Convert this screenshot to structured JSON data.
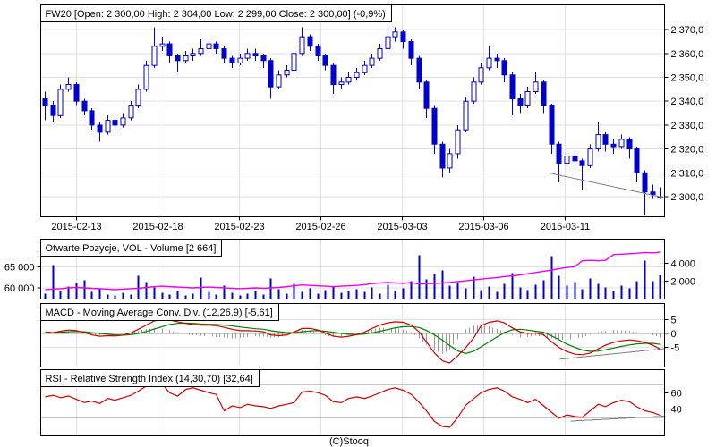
{
  "footer": {
    "copyright": "(C)Stooq"
  },
  "colors": {
    "candle": "#0000cc",
    "volume_bar": "#0000cc",
    "open_interest_line": "#ee00ee",
    "macd_line": "#cc0000",
    "signal_line": "#008000",
    "histogram": "#999999",
    "rsi_line": "#cc0000",
    "trendline": "#808080",
    "grid": "#e0e0e0",
    "level_line": "#888888",
    "frame": "#000000"
  },
  "chart_data": [
    {
      "type": "candlestick",
      "panel": "price",
      "title": "FW20 [Open: 2 300,00 High: 2 304,00 Low: 2 299,00 Close: 2 300,00] (-0,9%)",
      "instrument": "FW20",
      "last_quote": {
        "open": "2 300,00",
        "high": "2 304,00",
        "low": "2 299,00",
        "close": "2 300,00",
        "change": "-0,9%"
      },
      "y_ticks": [
        {
          "v": 2370,
          "label": "2 370,0"
        },
        {
          "v": 2360,
          "label": "2 360,0"
        },
        {
          "v": 2350,
          "label": "2 350,0"
        },
        {
          "v": 2340,
          "label": "2 340,0"
        },
        {
          "v": 2330,
          "label": "2 330,0"
        },
        {
          "v": 2320,
          "label": "2 320,0"
        },
        {
          "v": 2310,
          "label": "2 310,0"
        },
        {
          "v": 2300,
          "label": "2 300,0"
        }
      ],
      "ylim": [
        2288,
        2374
      ],
      "x_date_ticks": [
        {
          "label": "2015-02-13",
          "i": 4.0
        },
        {
          "label": "2015-02-18",
          "i": 14.5
        },
        {
          "label": "2015-02-23",
          "i": 24.9
        },
        {
          "label": "2015-02-26",
          "i": 35.4
        },
        {
          "label": "2015-03-03",
          "i": 45.9
        },
        {
          "label": "2015-03-06",
          "i": 56.3
        },
        {
          "label": "2015-03-11",
          "i": 66.8
        }
      ],
      "candles_ohlc": [
        [
          2341,
          2344,
          2332,
          2338
        ],
        [
          2338,
          2340,
          2331,
          2334
        ],
        [
          2334,
          2347,
          2333,
          2345
        ],
        [
          2345,
          2350,
          2344,
          2347
        ],
        [
          2347,
          2348,
          2338,
          2340
        ],
        [
          2340,
          2341,
          2334,
          2336
        ],
        [
          2336,
          2337,
          2328,
          2330
        ],
        [
          2330,
          2331,
          2323,
          2327
        ],
        [
          2327,
          2334,
          2326,
          2332
        ],
        [
          2332,
          2334,
          2328,
          2330
        ],
        [
          2330,
          2335,
          2329,
          2333
        ],
        [
          2333,
          2340,
          2332,
          2338
        ],
        [
          2338,
          2347,
          2337,
          2345
        ],
        [
          2345,
          2357,
          2344,
          2355
        ],
        [
          2355,
          2371,
          2354,
          2363
        ],
        [
          2363,
          2367,
          2361,
          2364
        ],
        [
          2364,
          2365,
          2356,
          2359
        ],
        [
          2359,
          2360,
          2352,
          2357
        ],
        [
          2357,
          2361,
          2356,
          2359
        ],
        [
          2359,
          2362,
          2357,
          2360
        ],
        [
          2360,
          2366,
          2359,
          2362
        ],
        [
          2362,
          2366,
          2361,
          2364
        ],
        [
          2364,
          2365,
          2360,
          2362
        ],
        [
          2362,
          2363,
          2356,
          2358
        ],
        [
          2358,
          2359,
          2354,
          2356
        ],
        [
          2356,
          2360,
          2355,
          2358
        ],
        [
          2358,
          2362,
          2357,
          2360
        ],
        [
          2360,
          2362,
          2357,
          2359
        ],
        [
          2359,
          2360,
          2354,
          2357
        ],
        [
          2357,
          2358,
          2341,
          2346
        ],
        [
          2346,
          2353,
          2345,
          2351
        ],
        [
          2351,
          2355,
          2350,
          2353
        ],
        [
          2353,
          2362,
          2352,
          2360
        ],
        [
          2360,
          2371,
          2359,
          2367
        ],
        [
          2367,
          2368,
          2361,
          2363
        ],
        [
          2363,
          2364,
          2357,
          2359
        ],
        [
          2359,
          2360,
          2353,
          2355
        ],
        [
          2355,
          2356,
          2343,
          2347
        ],
        [
          2347,
          2350,
          2345,
          2348
        ],
        [
          2348,
          2352,
          2347,
          2350
        ],
        [
          2350,
          2354,
          2349,
          2352
        ],
        [
          2352,
          2357,
          2351,
          2355
        ],
        [
          2355,
          2360,
          2354,
          2358
        ],
        [
          2358,
          2364,
          2357,
          2362
        ],
        [
          2362,
          2372,
          2361,
          2367
        ],
        [
          2367,
          2371,
          2365,
          2369
        ],
        [
          2369,
          2370,
          2362,
          2365
        ],
        [
          2365,
          2366,
          2355,
          2358
        ],
        [
          2358,
          2359,
          2345,
          2348
        ],
        [
          2348,
          2349,
          2333,
          2337
        ],
        [
          2337,
          2338,
          2318,
          2322
        ],
        [
          2322,
          2323,
          2308,
          2312
        ],
        [
          2312,
          2320,
          2310,
          2318
        ],
        [
          2318,
          2330,
          2316,
          2328
        ],
        [
          2328,
          2342,
          2327,
          2340
        ],
        [
          2340,
          2350,
          2339,
          2348
        ],
        [
          2348,
          2356,
          2347,
          2354
        ],
        [
          2354,
          2363,
          2353,
          2358
        ],
        [
          2358,
          2360,
          2354,
          2357
        ],
        [
          2357,
          2358,
          2348,
          2351
        ],
        [
          2351,
          2352,
          2334,
          2341
        ],
        [
          2341,
          2343,
          2335,
          2338
        ],
        [
          2338,
          2346,
          2337,
          2344
        ],
        [
          2344,
          2352,
          2343,
          2348
        ],
        [
          2348,
          2349,
          2335,
          2338
        ],
        [
          2338,
          2339,
          2318,
          2322
        ],
        [
          2322,
          2323,
          2306,
          2314
        ],
        [
          2314,
          2319,
          2312,
          2317
        ],
        [
          2317,
          2319,
          2312,
          2315
        ],
        [
          2315,
          2316,
          2303,
          2313
        ],
        [
          2313,
          2322,
          2312,
          2320
        ],
        [
          2320,
          2331,
          2319,
          2326
        ],
        [
          2326,
          2327,
          2319,
          2322
        ],
        [
          2322,
          2324,
          2318,
          2321
        ],
        [
          2321,
          2326,
          2320,
          2324
        ],
        [
          2324,
          2325,
          2316,
          2320
        ],
        [
          2320,
          2321,
          2306,
          2310
        ],
        [
          2310,
          2311,
          2291,
          2302
        ],
        [
          2302,
          2305,
          2299,
          2301
        ],
        [
          2300,
          2304,
          2299,
          2300
        ]
      ],
      "trendline": {
        "i1": 64.6,
        "v1": 2310,
        "i2": 79.6,
        "v2": 2299.5
      }
    },
    {
      "type": "bar+line",
      "panel": "volume",
      "title": "Otwarte Pozycje, VOL - Volume [2 664]",
      "last_volume": "2 664",
      "left_axis": {
        "series": "open_interest",
        "ticks": [
          {
            "v": 65000,
            "label": "65 000"
          },
          {
            "v": 60000,
            "label": "60 000"
          }
        ]
      },
      "right_axis": {
        "series": "volume",
        "ticks": [
          {
            "v": 4000,
            "label": "4 000"
          },
          {
            "v": 2000,
            "label": "2 000"
          }
        ]
      },
      "volume_bars": [
        600,
        3800,
        900,
        1400,
        1800,
        2100,
        800,
        1200,
        500,
        400,
        700,
        500,
        2600,
        1900,
        1300,
        700,
        500,
        900,
        400,
        600,
        2400,
        800,
        500,
        1500,
        700,
        400,
        600,
        900,
        500,
        2300,
        1100,
        600,
        1700,
        800,
        1200,
        600,
        1000,
        1400,
        700,
        900,
        1100,
        800,
        1300,
        600,
        1600,
        900,
        1200,
        2000,
        4900,
        2200,
        2800,
        3200,
        1500,
        1800,
        1200,
        2500,
        1000,
        1400,
        800,
        1700,
        2900,
        1300,
        1000,
        1600,
        2100,
        4800,
        2600,
        1500,
        1900,
        1100,
        2300,
        1700,
        1300,
        900,
        1500,
        1200,
        2000,
        4300,
        2000,
        2664
      ],
      "open_interest": [
        59600,
        59700,
        59800,
        60000,
        60100,
        60000,
        59900,
        59800,
        59700,
        59600,
        59700,
        59800,
        59900,
        60100,
        60300,
        60400,
        60300,
        60200,
        60100,
        60000,
        60100,
        60200,
        60100,
        60000,
        59900,
        59800,
        59900,
        60000,
        59900,
        60000,
        60100,
        60300,
        60500,
        60700,
        60600,
        60500,
        60400,
        60300,
        60400,
        60500,
        60600,
        60800,
        61000,
        61200,
        61300,
        61200,
        61100,
        61300,
        60900,
        61000,
        61100,
        61200,
        61300,
        61500,
        61700,
        61900,
        62100,
        62300,
        62500,
        62700,
        62900,
        63100,
        63400,
        63700,
        64000,
        64300,
        64600,
        64900,
        65100,
        66500,
        66600,
        66500,
        66600,
        68000,
        68100,
        68200,
        68300,
        68500,
        68400,
        68600
      ]
    },
    {
      "type": "line+histogram",
      "panel": "macd",
      "title": "MACD - Moving Average Conv. Div. (12,26,9) [-5,61]",
      "params": "12,26,9",
      "last_value": "-5,61",
      "right_axis": {
        "ticks": [
          {
            "v": 5,
            "label": "5"
          },
          {
            "v": 0,
            "label": "0"
          },
          {
            "v": -5,
            "label": "-5"
          }
        ]
      },
      "macd": [
        0.5,
        0.3,
        0.8,
        1.2,
        1.0,
        0.3,
        -0.5,
        -1.0,
        -0.8,
        -0.9,
        -0.6,
        0.2,
        1.5,
        3.0,
        4.5,
        5.0,
        4.8,
        4.2,
        3.6,
        3.2,
        3.0,
        3.0,
        2.8,
        2.2,
        1.5,
        1.0,
        1.0,
        0.9,
        0.6,
        -0.5,
        -0.8,
        -0.5,
        0.5,
        1.8,
        1.8,
        1.2,
        0.2,
        -1.0,
        -1.3,
        -1.0,
        -0.4,
        0.5,
        1.8,
        3.0,
        3.8,
        4.2,
        4.0,
        3.0,
        0.5,
        -3.0,
        -7.0,
        -9.8,
        -10.5,
        -8.0,
        -5.0,
        -1.5,
        2.8,
        4.0,
        4.5,
        3.8,
        2.0,
        0.5,
        0.0,
        0.2,
        -0.5,
        -3.0,
        -5.0,
        -6.5,
        -7.4,
        -7.6,
        -7.0,
        -5.5,
        -4.2,
        -3.2,
        -2.6,
        -2.3,
        -2.6,
        -3.2,
        -4.2,
        -5.6
      ],
      "signal": [
        0.3,
        0.3,
        0.4,
        0.6,
        0.7,
        0.6,
        0.3,
        0.0,
        -0.3,
        -0.5,
        -0.6,
        -0.4,
        0.0,
        0.7,
        1.6,
        2.5,
        3.2,
        3.6,
        3.7,
        3.6,
        3.4,
        3.3,
        3.2,
        3.0,
        2.7,
        2.3,
        2.0,
        1.7,
        1.5,
        1.0,
        0.6,
        0.3,
        0.3,
        0.6,
        0.9,
        1.0,
        0.8,
        0.4,
        0.0,
        -0.3,
        -0.4,
        -0.2,
        0.2,
        0.8,
        1.4,
        2.0,
        2.4,
        2.5,
        2.1,
        1.1,
        -0.5,
        -2.4,
        -4.3,
        -6.2,
        -7.2,
        -6.3,
        -4.8,
        -3.0,
        -1.2,
        0.3,
        1.3,
        1.5,
        1.2,
        0.8,
        0.4,
        -0.9,
        -2.2,
        -3.8,
        -5.0,
        -5.9,
        -6.4,
        -6.3,
        -5.8,
        -5.2,
        -4.6,
        -4.1,
        -3.7,
        -3.5,
        -3.5,
        -3.9
      ],
      "histogram": [
        0.2,
        0.1,
        0.3,
        0.4,
        0.2,
        -0.2,
        -0.5,
        -0.6,
        -0.3,
        -0.2,
        0.0,
        0.4,
        1.0,
        1.6,
        2.0,
        1.8,
        1.2,
        0.4,
        -0.2,
        -0.6,
        -0.8,
        -1.0,
        -1.2,
        -1.5,
        -1.8,
        -1.6,
        -1.2,
        -1.0,
        -1.1,
        -1.6,
        -1.4,
        -0.8,
        0.3,
        1.3,
        1.0,
        0.3,
        -0.6,
        -1.3,
        -1.2,
        -0.6,
        0.0,
        0.6,
        1.4,
        2.0,
        2.2,
        2.0,
        1.4,
        0.4,
        -1.8,
        -4.0,
        -6.0,
        -7.2,
        -6.0,
        -2.0,
        1.5,
        2.8,
        3.0,
        2.5,
        1.6,
        0.6,
        -0.5,
        -1.2,
        -1.3,
        -0.8,
        -1.0,
        -1.8,
        -2.2,
        -2.2,
        -1.8,
        -1.3,
        -0.5,
        0.5,
        1.0,
        1.2,
        1.1,
        0.9,
        0.5,
        0.0,
        -0.6,
        -1.4
      ],
      "trendline": {
        "i1": 66.1,
        "v1": -9.2,
        "i2": 79.6,
        "v2": -5.4
      }
    },
    {
      "type": "line",
      "panel": "rsi",
      "title": "RSI - Relative Strength Index (14,30,70) [32,64]",
      "params": "14,30,70",
      "last_value": "32,64",
      "right_axis": {
        "ticks": [
          {
            "v": 60,
            "label": "60"
          },
          {
            "v": 40,
            "label": "40"
          }
        ]
      },
      "levels": [
        70,
        30
      ],
      "rsi": [
        55,
        57,
        54,
        56,
        52,
        48,
        50,
        47,
        53,
        51,
        54,
        57,
        62,
        68,
        72,
        70,
        60,
        56,
        64,
        66,
        63,
        60,
        58,
        38,
        44,
        42,
        46,
        44,
        43,
        41,
        44,
        46,
        48,
        61,
        62,
        60,
        57,
        49,
        48,
        53,
        55,
        53,
        56,
        60,
        64,
        66,
        63,
        58,
        48,
        38,
        25,
        19,
        18,
        30,
        45,
        53,
        60,
        64,
        66,
        62,
        55,
        52,
        48,
        52,
        44,
        36,
        29,
        33,
        31,
        30,
        38,
        46,
        43,
        48,
        51,
        49,
        43,
        38,
        36,
        32.6
      ],
      "trendline": {
        "i1": 67.5,
        "v1": 25.5,
        "i2": 79.6,
        "v2": 31.5
      }
    }
  ]
}
